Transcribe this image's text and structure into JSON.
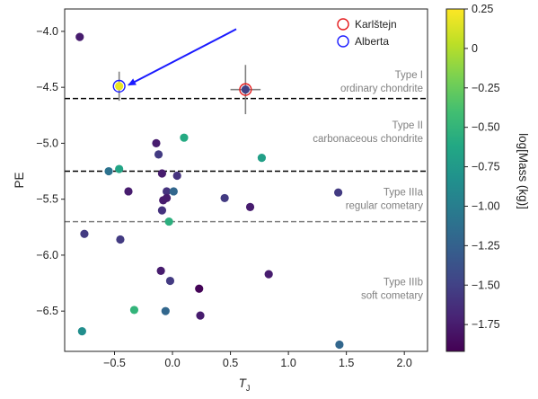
{
  "chart_data": {
    "type": "scatter",
    "xlabel": "T",
    "xlabel_sub": "J",
    "ylabel": "PE",
    "xlim": [
      -0.93,
      2.2
    ],
    "ylim": [
      -6.86,
      -3.8
    ],
    "y_inverted": true,
    "xticks": [
      -0.5,
      0.0,
      0.5,
      1.0,
      1.5,
      2.0
    ],
    "xtick_labels": [
      "−0.5",
      "0.0",
      "0.5",
      "1.0",
      "1.5",
      "2.0"
    ],
    "yticks": [
      -4.0,
      -4.5,
      -5.0,
      -5.5,
      -6.0,
      -6.5
    ],
    "ytick_labels": [
      "−4.0",
      "−4.5",
      "−5.0",
      "−5.5",
      "−6.0",
      "−6.5"
    ],
    "grid": false,
    "colorbar": {
      "label": "log[Mass (kg)]",
      "range": [
        -1.92,
        0.25
      ],
      "ticks": [
        0.25,
        0,
        -0.25,
        -0.5,
        -0.75,
        -1.0,
        -1.25,
        -1.5,
        -1.75
      ],
      "tick_labels": [
        "0.25",
        "0",
        "−0.25",
        "−0.50",
        "−0.75",
        "−1.00",
        "−1.25",
        "−1.50",
        "−1.75"
      ],
      "colormap": "viridis"
    },
    "thresholds": [
      {
        "pe": -4.6,
        "style": "dashed",
        "color": "#000000"
      },
      {
        "pe": -5.25,
        "style": "dashed",
        "color": "#000000"
      },
      {
        "pe": -5.7,
        "style": "dashed",
        "color": "#808080"
      }
    ],
    "type_labels": [
      {
        "line1": "Type I",
        "line2": "ordinary chondrite",
        "pe": -4.45
      },
      {
        "line1": "Type II",
        "line2": "carbonaceous chondrite",
        "pe": -4.9
      },
      {
        "line1": "Type IIIa",
        "line2": "regular cometary",
        "pe": -5.5
      },
      {
        "line1": "Type IIIb",
        "line2": "soft cometary",
        "pe": -6.3
      }
    ],
    "legend": {
      "position": "top-right",
      "entries": [
        {
          "label": "Karlštejn",
          "color": "#e41a1c"
        },
        {
          "label": "Alberta",
          "color": "#1a1aff"
        }
      ]
    },
    "highlighted": [
      {
        "name": "Karlštejn",
        "x": 0.63,
        "y": -4.52,
        "xerr": 0.13,
        "yerr": 0.22,
        "log_mass": -1.5,
        "ring": "#e41a1c"
      },
      {
        "name": "Alberta",
        "x": -0.46,
        "y": -4.49,
        "xerr": 0.0,
        "yerr": 0.13,
        "log_mass": 0.18,
        "ring": "#1a1aff"
      }
    ],
    "arrow": {
      "from": [
        0.55,
        -3.98
      ],
      "to": [
        -0.38,
        -4.48
      ],
      "color": "#1a1aff"
    },
    "points": [
      {
        "x": -0.8,
        "y": -4.05,
        "log_mass": -1.75
      },
      {
        "x": -0.14,
        "y": -5.0,
        "log_mass": -1.75
      },
      {
        "x": -0.12,
        "y": -5.1,
        "log_mass": -1.55
      },
      {
        "x": 0.1,
        "y": -4.95,
        "log_mass": -0.6
      },
      {
        "x": -0.55,
        "y": -5.25,
        "log_mass": -1.1
      },
      {
        "x": -0.46,
        "y": -5.23,
        "log_mass": -0.65
      },
      {
        "x": -0.09,
        "y": -5.27,
        "log_mass": -1.75
      },
      {
        "x": 0.04,
        "y": -5.29,
        "log_mass": -1.6
      },
      {
        "x": 0.77,
        "y": -5.13,
        "log_mass": -0.7
      },
      {
        "x": -0.38,
        "y": -5.43,
        "log_mass": -1.75
      },
      {
        "x": -0.05,
        "y": -5.43,
        "log_mass": -1.6
      },
      {
        "x": 0.01,
        "y": -5.43,
        "log_mass": -1.2
      },
      {
        "x": -0.05,
        "y": -5.49,
        "log_mass": -1.75
      },
      {
        "x": -0.08,
        "y": -5.51,
        "log_mass": -1.75
      },
      {
        "x": -0.09,
        "y": -5.6,
        "log_mass": -1.6
      },
      {
        "x": 0.45,
        "y": -5.49,
        "log_mass": -1.55
      },
      {
        "x": 0.67,
        "y": -5.57,
        "log_mass": -1.75
      },
      {
        "x": 1.43,
        "y": -5.44,
        "log_mass": -1.55
      },
      {
        "x": -0.03,
        "y": -5.7,
        "log_mass": -0.55
      },
      {
        "x": -0.76,
        "y": -5.81,
        "log_mass": -1.55
      },
      {
        "x": -0.45,
        "y": -5.86,
        "log_mass": -1.55
      },
      {
        "x": -0.1,
        "y": -6.14,
        "log_mass": -1.75
      },
      {
        "x": 0.83,
        "y": -6.17,
        "log_mass": -1.75
      },
      {
        "x": -0.02,
        "y": -6.23,
        "log_mass": -1.55
      },
      {
        "x": 0.23,
        "y": -6.3,
        "log_mass": -1.9
      },
      {
        "x": -0.33,
        "y": -6.49,
        "log_mass": -0.5
      },
      {
        "x": -0.06,
        "y": -6.5,
        "log_mass": -1.2
      },
      {
        "x": 0.24,
        "y": -6.54,
        "log_mass": -1.75
      },
      {
        "x": -0.78,
        "y": -6.68,
        "log_mass": -0.85
      },
      {
        "x": 1.44,
        "y": -6.8,
        "log_mass": -1.2
      }
    ]
  }
}
